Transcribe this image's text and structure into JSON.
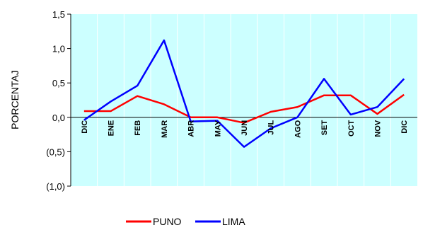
{
  "chart_data": {
    "type": "line",
    "ylabel": "PORCENTAJ",
    "categories": [
      "DIC",
      "ENE",
      "FEB",
      "MAR",
      "ABR",
      "MAY",
      "JUN",
      "JUL",
      "AGO",
      "SET",
      "OCT",
      "NOV",
      "DIC"
    ],
    "y_ticks": [
      "1,5",
      "1,0",
      "0,5",
      "0,0",
      "(0,5)",
      "(1,0)"
    ],
    "ylim": [
      -1.0,
      1.5
    ],
    "series": [
      {
        "name": "PUNO",
        "color": "#ff0000",
        "values": [
          0.09,
          0.09,
          0.31,
          0.19,
          0.0,
          0.0,
          -0.08,
          0.08,
          0.15,
          0.32,
          0.32,
          0.05,
          0.33
        ]
      },
      {
        "name": "LIMA",
        "color": "#0000ff",
        "values": [
          -0.04,
          0.23,
          0.46,
          1.12,
          -0.06,
          -0.05,
          -0.43,
          -0.16,
          0.0,
          0.56,
          0.04,
          0.15,
          0.56
        ]
      }
    ],
    "grid": "vertical",
    "plot_background": "#ccffff",
    "legend_position": "bottom"
  }
}
